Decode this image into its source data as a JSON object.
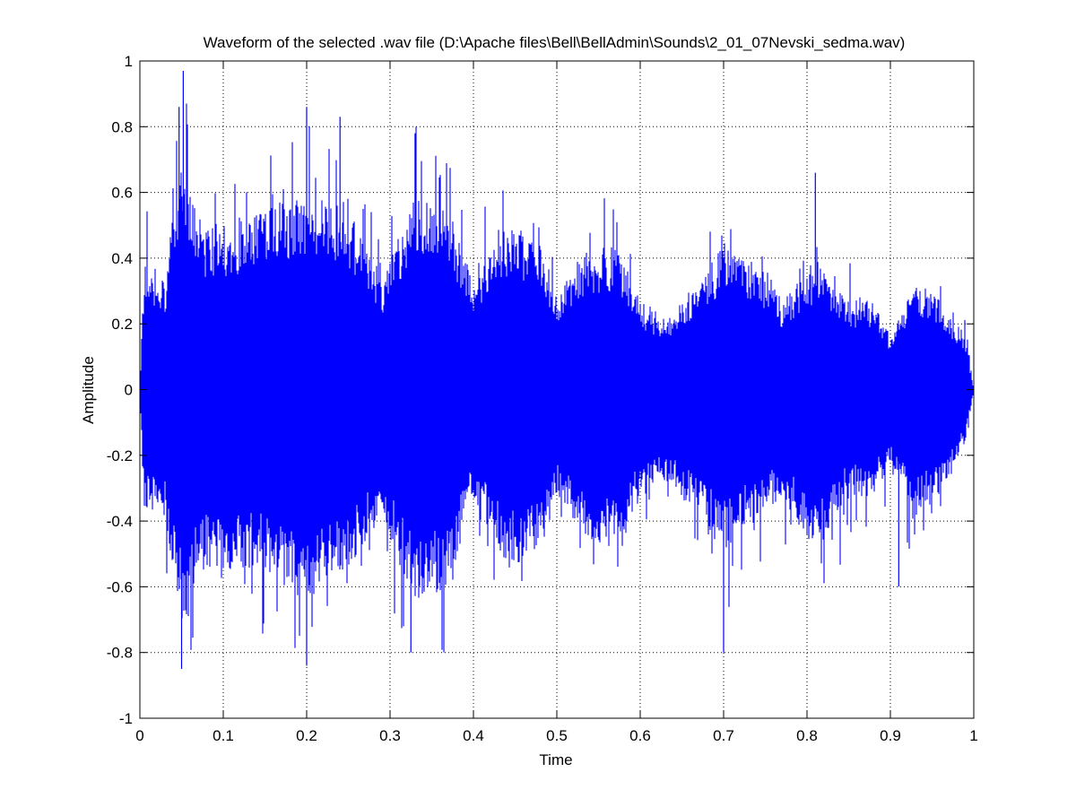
{
  "chart_data": {
    "type": "line",
    "title": "Waveform of the selected .wav file (D:\\Apache files\\Bell\\BellAdmin\\Sounds\\2_01_07Nevski_sedma.wav)",
    "xlabel": "Time",
    "ylabel": "Amplitude",
    "xlim": [
      0,
      1
    ],
    "ylim": [
      -1,
      1
    ],
    "xticks": [
      "0",
      "0.1",
      "0.2",
      "0.3",
      "0.4",
      "0.5",
      "0.6",
      "0.7",
      "0.8",
      "0.9",
      "1"
    ],
    "yticks": [
      "-1",
      "-0.8",
      "-0.6",
      "-0.4",
      "-0.2",
      "0",
      "0.2",
      "0.4",
      "0.6",
      "0.8",
      "1"
    ],
    "grid": true,
    "line_color": "#0000ff",
    "envelope": {
      "x": [
        0,
        0.005,
        0.03,
        0.045,
        0.055,
        0.07,
        0.1,
        0.15,
        0.2,
        0.25,
        0.29,
        0.33,
        0.37,
        0.4,
        0.44,
        0.48,
        0.5,
        0.53,
        0.57,
        0.6,
        0.63,
        0.67,
        0.7,
        0.74,
        0.77,
        0.81,
        0.85,
        0.88,
        0.9,
        0.93,
        0.96,
        0.99,
        1.0
      ],
      "upper": [
        0,
        0.35,
        0.3,
        0.6,
        0.65,
        0.45,
        0.45,
        0.5,
        0.55,
        0.5,
        0.3,
        0.55,
        0.5,
        0.3,
        0.45,
        0.4,
        0.25,
        0.35,
        0.4,
        0.25,
        0.2,
        0.3,
        0.4,
        0.35,
        0.25,
        0.35,
        0.25,
        0.25,
        0.15,
        0.3,
        0.25,
        0.15,
        0
      ],
      "lower": [
        0,
        -0.33,
        -0.35,
        -0.6,
        -0.7,
        -0.5,
        -0.5,
        -0.5,
        -0.6,
        -0.5,
        -0.35,
        -0.6,
        -0.55,
        -0.3,
        -0.5,
        -0.45,
        -0.3,
        -0.4,
        -0.45,
        -0.3,
        -0.25,
        -0.35,
        -0.45,
        -0.35,
        -0.3,
        -0.45,
        -0.3,
        -0.3,
        -0.2,
        -0.35,
        -0.3,
        -0.15,
        0
      ]
    },
    "peaks": [
      {
        "x": 0.047,
        "y": 0.86
      },
      {
        "x": 0.052,
        "y": 0.97
      },
      {
        "x": 0.2,
        "y": 0.86
      },
      {
        "x": 0.24,
        "y": 0.83
      },
      {
        "x": 0.33,
        "y": 0.78
      },
      {
        "x": 0.05,
        "y": -0.85
      },
      {
        "x": 0.2,
        "y": -0.84
      },
      {
        "x": 0.7,
        "y": -0.8
      },
      {
        "x": 0.325,
        "y": -0.8
      },
      {
        "x": 0.81,
        "y": 0.66
      },
      {
        "x": 0.91,
        "y": -0.6
      }
    ]
  }
}
